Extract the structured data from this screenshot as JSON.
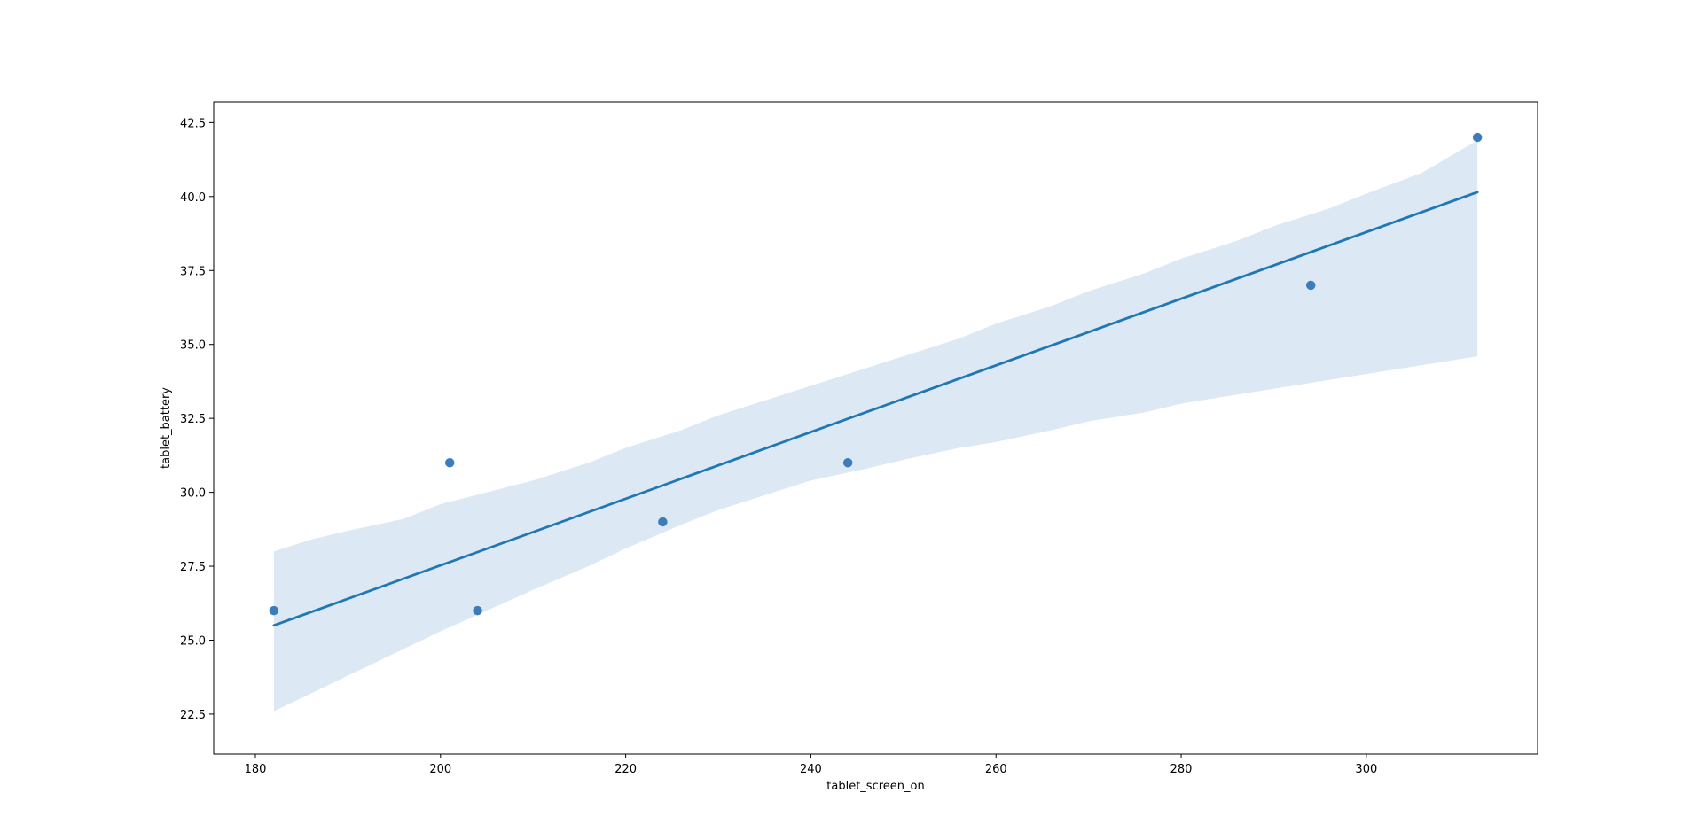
{
  "chart_data": {
    "type": "scatter",
    "xlabel": "tablet_screen_on",
    "ylabel": "tablet_battery",
    "xlim": [
      175.5,
      318.5
    ],
    "ylim": [
      21.15,
      43.2
    ],
    "x_ticks": [
      180,
      200,
      220,
      240,
      260,
      280,
      300
    ],
    "y_ticks": [
      22.5,
      25.0,
      27.5,
      30.0,
      32.5,
      35.0,
      37.5,
      40.0,
      42.5
    ],
    "points": [
      {
        "x": 182,
        "y": 26
      },
      {
        "x": 201,
        "y": 31
      },
      {
        "x": 204,
        "y": 26
      },
      {
        "x": 224,
        "y": 29
      },
      {
        "x": 244,
        "y": 31
      },
      {
        "x": 294,
        "y": 37
      },
      {
        "x": 312,
        "y": 42
      }
    ],
    "regression_line": {
      "x": [
        182,
        312
      ],
      "y": [
        25.5,
        40.15
      ]
    },
    "confidence_band": {
      "upper": [
        [
          182,
          28.0
        ],
        [
          186,
          28.4
        ],
        [
          190,
          28.7
        ],
        [
          196,
          29.1
        ],
        [
          200,
          29.6
        ],
        [
          205,
          30.0
        ],
        [
          210,
          30.4
        ],
        [
          216,
          31.0
        ],
        [
          220,
          31.5
        ],
        [
          226,
          32.1
        ],
        [
          230,
          32.6
        ],
        [
          235,
          33.1
        ],
        [
          240,
          33.6
        ],
        [
          246,
          34.2
        ],
        [
          250,
          34.6
        ],
        [
          256,
          35.2
        ],
        [
          260,
          35.7
        ],
        [
          266,
          36.3
        ],
        [
          270,
          36.8
        ],
        [
          276,
          37.4
        ],
        [
          280,
          37.9
        ],
        [
          286,
          38.5
        ],
        [
          290,
          39.0
        ],
        [
          296,
          39.6
        ],
        [
          300,
          40.1
        ],
        [
          306,
          40.8
        ],
        [
          312,
          41.9
        ]
      ],
      "lower": [
        [
          182,
          22.6
        ],
        [
          186,
          23.2
        ],
        [
          190,
          23.8
        ],
        [
          196,
          24.7
        ],
        [
          200,
          25.3
        ],
        [
          205,
          26.0
        ],
        [
          210,
          26.7
        ],
        [
          216,
          27.5
        ],
        [
          220,
          28.1
        ],
        [
          226,
          28.9
        ],
        [
          230,
          29.4
        ],
        [
          235,
          29.9
        ],
        [
          240,
          30.4
        ],
        [
          246,
          30.8
        ],
        [
          250,
          31.1
        ],
        [
          256,
          31.5
        ],
        [
          260,
          31.7
        ],
        [
          266,
          32.1
        ],
        [
          270,
          32.4
        ],
        [
          276,
          32.7
        ],
        [
          280,
          33.0
        ],
        [
          286,
          33.3
        ],
        [
          290,
          33.5
        ],
        [
          296,
          33.8
        ],
        [
          300,
          34.0
        ],
        [
          306,
          34.3
        ],
        [
          312,
          34.6
        ]
      ]
    },
    "grid": false,
    "colors": {
      "points": "#3b7dbb",
      "line": "#1f77b4",
      "band": "#dce8f3",
      "axes": "#000000"
    }
  }
}
